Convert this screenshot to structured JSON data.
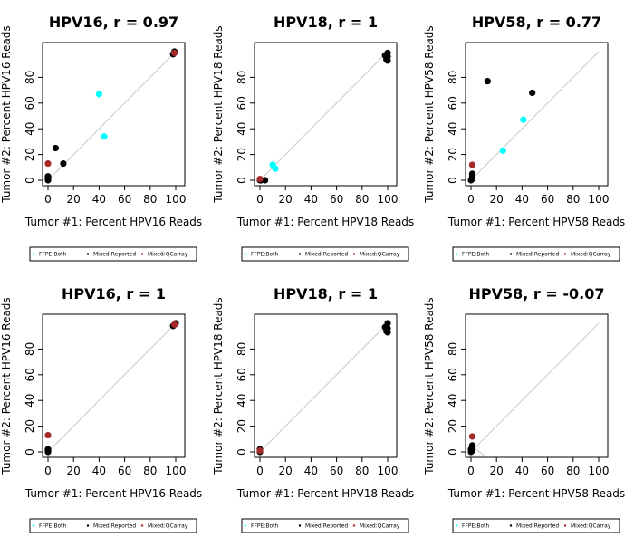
{
  "figure": {
    "colors": {
      "ffpe_both": "#00ffff",
      "mixed_reported": "#000000",
      "mixed_qcarray": "#a52a2a",
      "identity_line": "#c8c8c8"
    },
    "legend_entries": [
      "FFPE:Both",
      "Mixed:Reported",
      "Mixed:QCarray"
    ]
  },
  "chart_data": [
    {
      "type": "scatter",
      "title": "HPV16, r = 0.97",
      "xlabel": "Tumor #1: Percent HPV16 Reads",
      "ylabel": "Tumor #2: Percent HPV16 Reads",
      "xlim": [
        0,
        100
      ],
      "ylim": [
        0,
        100
      ],
      "x_ticks": [
        0,
        20,
        40,
        60,
        80,
        100
      ],
      "y_ticks": [
        0,
        20,
        40,
        60,
        80
      ],
      "identity_line": true,
      "series": [
        {
          "name": "FFPE:Both",
          "points": [
            [
              40,
              67
            ],
            [
              44,
              34
            ]
          ]
        },
        {
          "name": "Mixed:Reported",
          "points": [
            [
              0,
              0
            ],
            [
              0,
              1
            ],
            [
              0,
              3
            ],
            [
              6,
              25
            ],
            [
              12,
              13
            ],
            [
              98,
              98
            ],
            [
              99,
              100
            ]
          ]
        },
        {
          "name": "Mixed:QCarray",
          "points": [
            [
              0,
              13
            ],
            [
              99,
              99
            ]
          ]
        }
      ]
    },
    {
      "type": "scatter",
      "title": "HPV18, r = 1",
      "xlabel": "Tumor #1: Percent HPV18 Reads",
      "ylabel": "Tumor #2: Percent HPV18 Reads",
      "xlim": [
        0,
        100
      ],
      "ylim": [
        0,
        100
      ],
      "x_ticks": [
        0,
        20,
        40,
        60,
        80,
        100
      ],
      "y_ticks": [
        0,
        20,
        40,
        60,
        80
      ],
      "identity_line": true,
      "series": [
        {
          "name": "FFPE:Both",
          "points": [
            [
              10,
              12
            ],
            [
              12,
              9
            ]
          ]
        },
        {
          "name": "Mixed:Reported",
          "points": [
            [
              0,
              0
            ],
            [
              1,
              0
            ],
            [
              4,
              0
            ],
            [
              98,
              97
            ],
            [
              99,
              94
            ],
            [
              100,
              93
            ],
            [
              100,
              96
            ],
            [
              100,
              99
            ]
          ]
        },
        {
          "name": "Mixed:QCarray",
          "points": [
            [
              0,
              1
            ]
          ]
        }
      ]
    },
    {
      "type": "scatter",
      "title": "HPV58, r = 0.77",
      "xlabel": "Tumor #1: Percent HPV58 Reads",
      "ylabel": "Tumor #2: Percent HPV58 Reads",
      "xlim": [
        0,
        100
      ],
      "ylim": [
        0,
        100
      ],
      "x_ticks": [
        0,
        20,
        40,
        60,
        80,
        100
      ],
      "y_ticks": [
        0,
        20,
        40,
        60,
        80
      ],
      "identity_line": true,
      "series": [
        {
          "name": "FFPE:Both",
          "points": [
            [
              25,
              23
            ],
            [
              41,
              47
            ]
          ]
        },
        {
          "name": "Mixed:Reported",
          "points": [
            [
              0,
              0
            ],
            [
              1,
              1
            ],
            [
              1,
              3
            ],
            [
              1,
              5
            ],
            [
              13,
              77
            ],
            [
              48,
              68
            ]
          ]
        },
        {
          "name": "Mixed:QCarray",
          "points": [
            [
              1,
              12
            ]
          ]
        }
      ]
    },
    {
      "type": "scatter",
      "title": "HPV16, r = 1",
      "xlabel": "Tumor #1: Percent HPV16 Reads",
      "ylabel": "Tumor #2: Percent HPV16 Reads",
      "xlim": [
        0,
        100
      ],
      "ylim": [
        0,
        100
      ],
      "x_ticks": [
        0,
        20,
        40,
        60,
        80,
        100
      ],
      "y_ticks": [
        0,
        20,
        40,
        60,
        80
      ],
      "identity_line": true,
      "series": [
        {
          "name": "FFPE:Both",
          "points": []
        },
        {
          "name": "Mixed:Reported",
          "points": [
            [
              0,
              0
            ],
            [
              0,
              1
            ],
            [
              0,
              2
            ],
            [
              98,
              98
            ],
            [
              99,
              99
            ],
            [
              100,
              100
            ]
          ]
        },
        {
          "name": "Mixed:QCarray",
          "points": [
            [
              0,
              13
            ],
            [
              99,
              99
            ]
          ]
        }
      ]
    },
    {
      "type": "scatter",
      "title": "HPV18, r = 1",
      "xlabel": "Tumor #1: Percent HPV18 Reads",
      "ylabel": "Tumor #2: Percent HPV18 Reads",
      "xlim": [
        0,
        100
      ],
      "ylim": [
        0,
        100
      ],
      "x_ticks": [
        0,
        20,
        40,
        60,
        80,
        100
      ],
      "y_ticks": [
        0,
        20,
        40,
        60,
        80
      ],
      "identity_line": true,
      "series": [
        {
          "name": "FFPE:Both",
          "points": []
        },
        {
          "name": "Mixed:Reported",
          "points": [
            [
              0,
              0
            ],
            [
              0,
              2
            ],
            [
              98,
              97
            ],
            [
              99,
              94
            ],
            [
              100,
              93
            ],
            [
              100,
              96
            ],
            [
              100,
              100
            ]
          ]
        },
        {
          "name": "Mixed:QCarray",
          "points": [
            [
              0,
              1
            ]
          ]
        }
      ]
    },
    {
      "type": "scatter",
      "title": "HPV58, r = -0.07",
      "xlabel": "Tumor #1: Percent HPV58 Reads",
      "ylabel": "Tumor #2: Percent HPV58 Reads",
      "xlim": [
        0,
        100
      ],
      "ylim": [
        0,
        100
      ],
      "x_ticks": [
        0,
        20,
        40,
        60,
        80,
        100
      ],
      "y_ticks": [
        0,
        20,
        40,
        60,
        80
      ],
      "identity_line": true,
      "series": [
        {
          "name": "FFPE:Both",
          "points": []
        },
        {
          "name": "Mixed:Reported",
          "points": [
            [
              0,
              0
            ],
            [
              1,
              1
            ],
            [
              1,
              3
            ],
            [
              1,
              5
            ],
            [
              0,
              2
            ]
          ]
        },
        {
          "name": "Mixed:QCarray",
          "points": [
            [
              1,
              12
            ]
          ]
        }
      ]
    }
  ]
}
